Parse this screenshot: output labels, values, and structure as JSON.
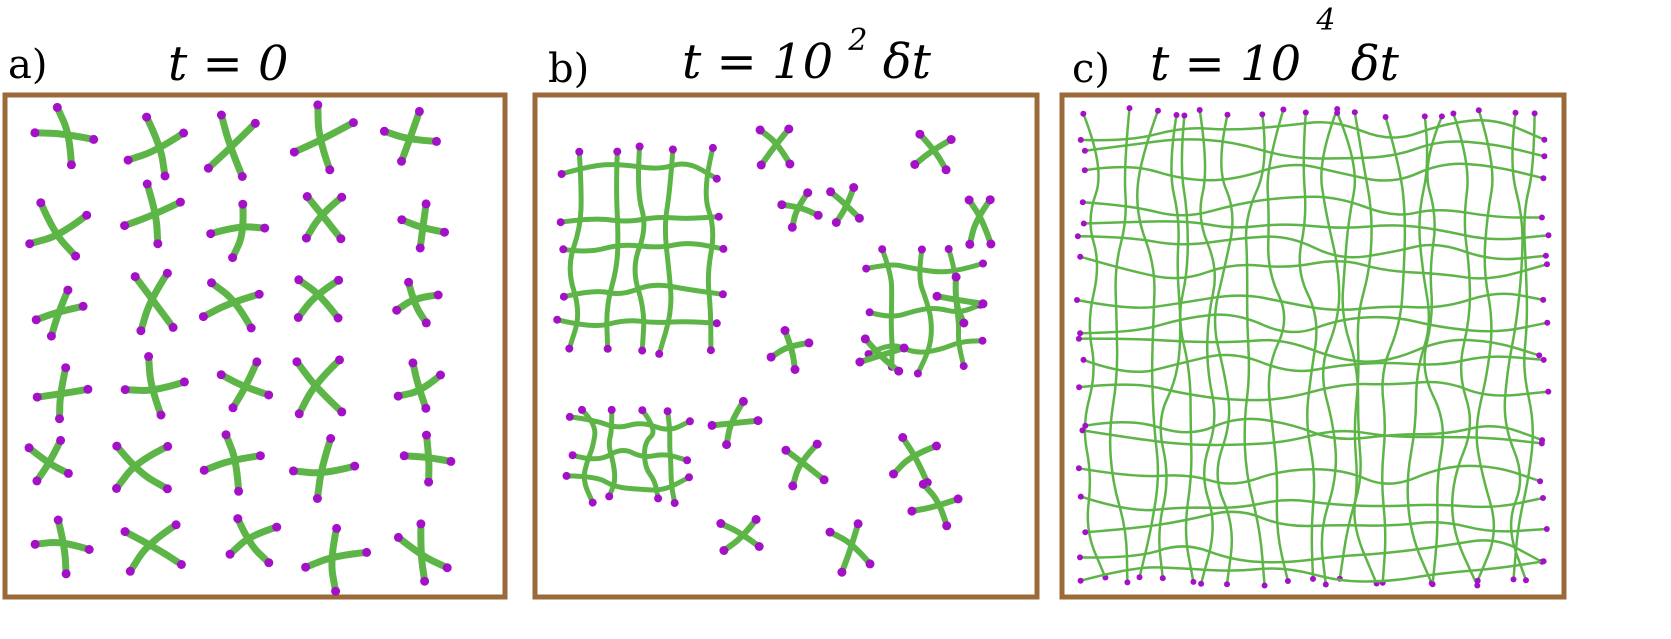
{
  "figure": {
    "colors": {
      "frame": "#9b6a38",
      "filament": "#5db548",
      "end": "#a40fc8",
      "text": "#000000"
    },
    "panels": [
      {
        "label": "a)",
        "time_main": "t = 0",
        "time_exp": "",
        "time_tail": "",
        "state": "isolated crosses",
        "cross_count": 30
      },
      {
        "label": "b)",
        "time_main": "t = 10",
        "time_exp": "2",
        "time_tail": "δt",
        "state": "partial clusters",
        "cluster_count": 3,
        "cross_count": 14
      },
      {
        "label": "c)",
        "time_main": "t = 10",
        "time_exp": "4",
        "time_tail": "δt",
        "state": "percolated network"
      }
    ]
  }
}
